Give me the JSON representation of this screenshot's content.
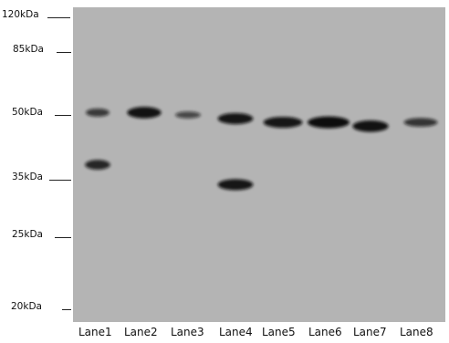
{
  "markers": [
    {
      "label": "120kDa",
      "kda": 120
    },
    {
      "label": "85kDa",
      "kda": 85
    },
    {
      "label": "50kDa",
      "kda": 50
    },
    {
      "label": "35kDa",
      "kda": 35
    },
    {
      "label": "25kDa",
      "kda": 25
    },
    {
      "label": "20kDa",
      "kda": 20
    }
  ],
  "lanes": [
    {
      "label": "Lane1"
    },
    {
      "label": "Lane2"
    },
    {
      "label": "Lane3"
    },
    {
      "label": "Lane4"
    },
    {
      "label": "Lane5"
    },
    {
      "label": "Lane6"
    },
    {
      "label": "Lane7"
    },
    {
      "label": "Lane8"
    }
  ],
  "bands": [
    {
      "lane": 1,
      "kda": 51,
      "intensity": 0.55
    },
    {
      "lane": 1,
      "kda": 38,
      "intensity": 0.75
    },
    {
      "lane": 2,
      "kda": 51,
      "intensity": 0.95
    },
    {
      "lane": 3,
      "kda": 50,
      "intensity": 0.4
    },
    {
      "lane": 4,
      "kda": 49,
      "intensity": 0.9
    },
    {
      "lane": 4,
      "kda": 34,
      "intensity": 0.9
    },
    {
      "lane": 5,
      "kda": 48,
      "intensity": 0.9
    },
    {
      "lane": 6,
      "kda": 48,
      "intensity": 1.0
    },
    {
      "lane": 7,
      "kda": 47,
      "intensity": 0.95
    },
    {
      "lane": 8,
      "kda": 48,
      "intensity": 0.6
    }
  ],
  "colors": {
    "membrane": "#b4b4b4",
    "band": "#101010",
    "text": "#111111"
  }
}
